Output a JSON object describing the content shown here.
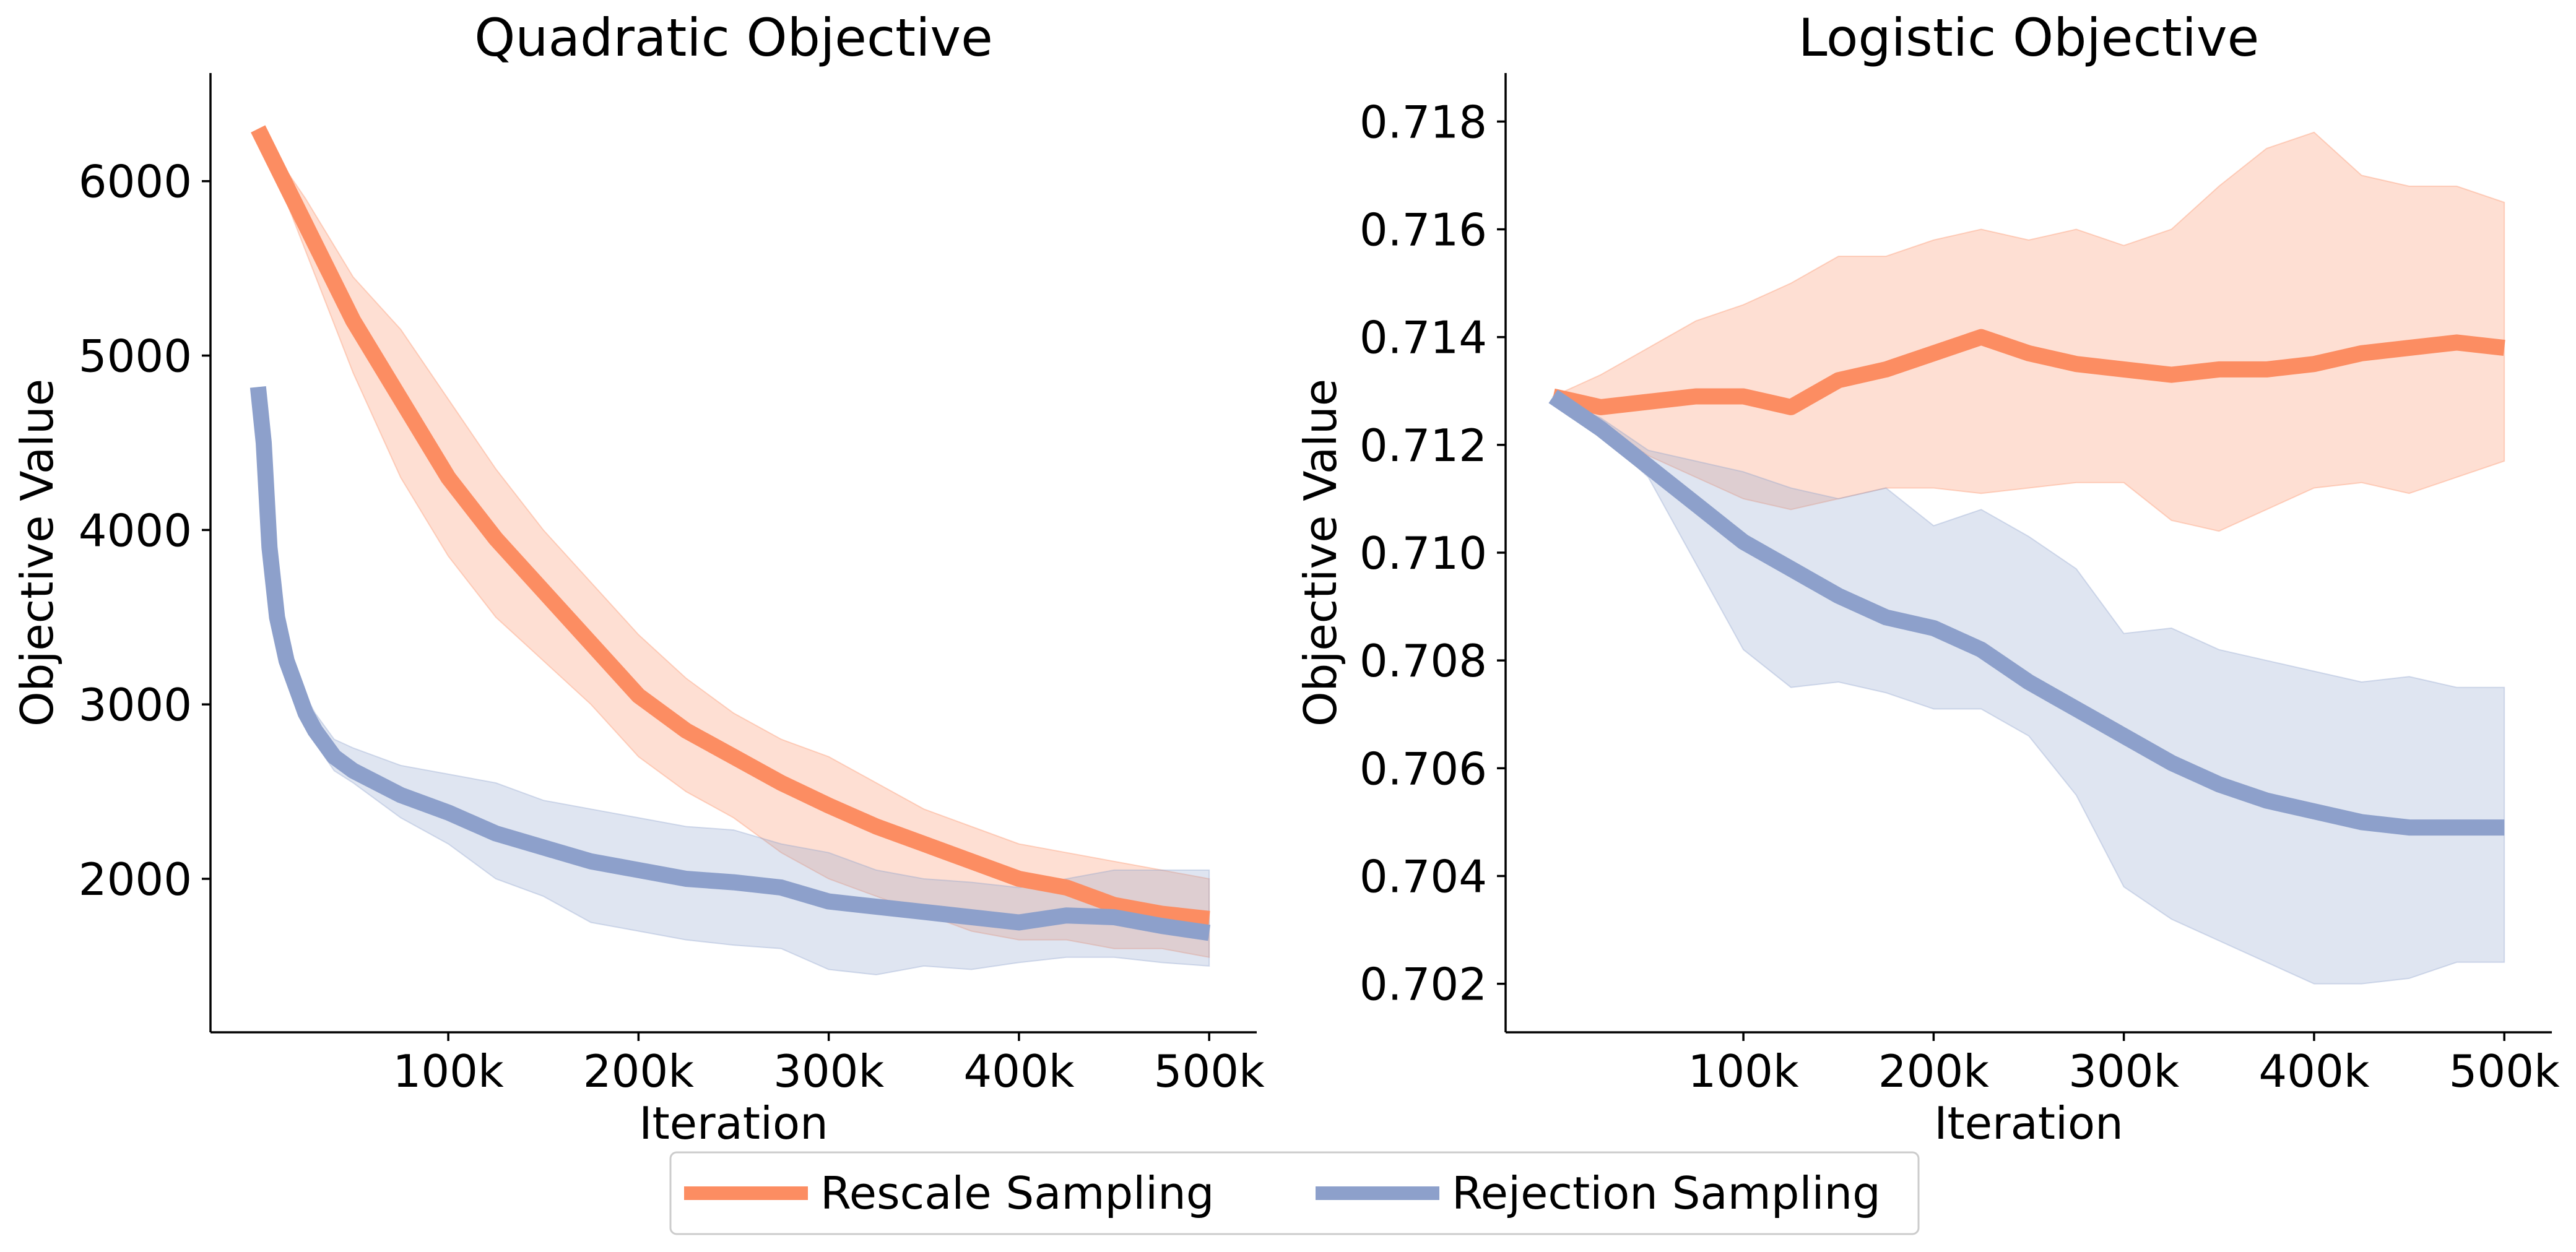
{
  "colors": {
    "rescale": "#fc8d62",
    "rejection": "#8da0cb"
  },
  "legend": {
    "items": [
      {
        "label": "Rescale Sampling",
        "color": "#fc8d62"
      },
      {
        "label": "Rejection Sampling",
        "color": "#8da0cb"
      }
    ]
  },
  "chart_data": [
    {
      "type": "line",
      "title": "Quadratic Objective",
      "xlabel": "Iteration",
      "ylabel": "Objective Value",
      "xlim": [
        -25000,
        525000
      ],
      "ylim": [
        1120,
        6620
      ],
      "xticks": [
        100000,
        200000,
        300000,
        400000,
        500000
      ],
      "xtick_labels": [
        "100k",
        "200k",
        "300k",
        "400k",
        "500k"
      ],
      "yticks": [
        2000,
        3000,
        4000,
        5000,
        6000
      ],
      "ytick_labels": [
        "2000",
        "3000",
        "4000",
        "5000",
        "6000"
      ],
      "grid": false,
      "x": [
        0,
        25000,
        50000,
        75000,
        100000,
        125000,
        150000,
        175000,
        200000,
        225000,
        250000,
        275000,
        300000,
        325000,
        350000,
        375000,
        400000,
        425000,
        450000,
        475000,
        500000
      ],
      "series": [
        {
          "name": "Rescale Sampling",
          "values": [
            6300,
            5750,
            5200,
            4750,
            4300,
            3950,
            3650,
            3350,
            3050,
            2850,
            2700,
            2550,
            2420,
            2300,
            2200,
            2100,
            2000,
            1950,
            1850,
            1800,
            1770
          ],
          "lower": [
            6300,
            5600,
            4900,
            4300,
            3850,
            3500,
            3250,
            3000,
            2700,
            2500,
            2350,
            2150,
            2000,
            1900,
            1800,
            1700,
            1650,
            1650,
            1600,
            1600,
            1550
          ],
          "upper": [
            6300,
            5900,
            5450,
            5150,
            4750,
            4350,
            4000,
            3700,
            3400,
            3150,
            2950,
            2800,
            2700,
            2550,
            2400,
            2300,
            2200,
            2150,
            2100,
            2050,
            2000
          ]
        },
        {
          "name": "Rejection Sampling",
          "x": [
            0,
            3000,
            6000,
            10000,
            15000,
            20000,
            25000,
            30000,
            40000,
            50000,
            75000,
            100000,
            125000,
            150000,
            175000,
            200000,
            225000,
            250000,
            275000,
            300000,
            325000,
            350000,
            375000,
            400000,
            425000,
            450000,
            475000,
            500000
          ],
          "values": [
            4820,
            4500,
            3900,
            3500,
            3250,
            3100,
            2950,
            2850,
            2700,
            2620,
            2480,
            2380,
            2260,
            2180,
            2100,
            2050,
            2000,
            1980,
            1950,
            1870,
            1840,
            1810,
            1780,
            1750,
            1790,
            1780,
            1730,
            1690
          ],
          "lower": [
            4820,
            4400,
            3800,
            3400,
            3150,
            3000,
            2870,
            2780,
            2620,
            2550,
            2350,
            2200,
            2000,
            1900,
            1750,
            1700,
            1650,
            1620,
            1600,
            1480,
            1450,
            1500,
            1480,
            1520,
            1550,
            1550,
            1520,
            1500
          ],
          "upper": [
            4820,
            4600,
            4000,
            3600,
            3350,
            3200,
            3050,
            2950,
            2800,
            2750,
            2650,
            2600,
            2550,
            2450,
            2400,
            2350,
            2300,
            2280,
            2200,
            2150,
            2050,
            2000,
            1980,
            1950,
            2000,
            2050,
            2050,
            2050
          ]
        }
      ]
    },
    {
      "type": "line",
      "title": "Logistic Objective",
      "xlabel": "Iteration",
      "ylabel": "Objective Value",
      "xlim": [
        -25000,
        525000
      ],
      "ylim": [
        0.7011,
        0.7189
      ],
      "xticks": [
        100000,
        200000,
        300000,
        400000,
        500000
      ],
      "xtick_labels": [
        "100k",
        "200k",
        "300k",
        "400k",
        "500k"
      ],
      "yticks": [
        0.702,
        0.704,
        0.706,
        0.708,
        0.71,
        0.712,
        0.714,
        0.716,
        0.718
      ],
      "ytick_labels": [
        "0.702",
        "0.704",
        "0.706",
        "0.708",
        "0.710",
        "0.712",
        "0.714",
        "0.716",
        "0.718"
      ],
      "grid": false,
      "x": [
        0,
        25000,
        50000,
        75000,
        100000,
        125000,
        150000,
        175000,
        200000,
        225000,
        250000,
        275000,
        300000,
        325000,
        350000,
        375000,
        400000,
        425000,
        450000,
        475000,
        500000
      ],
      "series": [
        {
          "name": "Rescale Sampling",
          "values": [
            0.7129,
            0.7127,
            0.7128,
            0.7129,
            0.7129,
            0.7127,
            0.7132,
            0.7134,
            0.7137,
            0.714,
            0.7137,
            0.7135,
            0.7134,
            0.7133,
            0.7134,
            0.7134,
            0.7135,
            0.7137,
            0.7138,
            0.7139,
            0.7138
          ],
          "lower": [
            0.7129,
            0.7124,
            0.7118,
            0.7114,
            0.711,
            0.7108,
            0.711,
            0.7112,
            0.7112,
            0.7111,
            0.7112,
            0.7113,
            0.7113,
            0.7106,
            0.7104,
            0.7108,
            0.7112,
            0.7113,
            0.7111,
            0.7114,
            0.7117
          ],
          "upper": [
            0.7129,
            0.7133,
            0.7138,
            0.7143,
            0.7146,
            0.715,
            0.7155,
            0.7155,
            0.7158,
            0.716,
            0.7158,
            0.716,
            0.7157,
            0.716,
            0.7168,
            0.7175,
            0.7178,
            0.717,
            0.7168,
            0.7168,
            0.7165
          ]
        },
        {
          "name": "Rejection Sampling",
          "values": [
            0.7129,
            0.7123,
            0.7116,
            0.7109,
            0.7102,
            0.7097,
            0.7092,
            0.7088,
            0.7086,
            0.7082,
            0.7076,
            0.7071,
            0.7066,
            0.7061,
            0.7057,
            0.7054,
            0.7052,
            0.705,
            0.7049,
            0.7049,
            0.7049
          ],
          "lower": [
            0.7129,
            0.7122,
            0.7114,
            0.7098,
            0.7082,
            0.7075,
            0.7076,
            0.7074,
            0.7071,
            0.7071,
            0.7066,
            0.7055,
            0.7038,
            0.7032,
            0.7028,
            0.7024,
            0.702,
            0.702,
            0.7021,
            0.7024,
            0.7024
          ],
          "upper": [
            0.7129,
            0.7125,
            0.7119,
            0.7117,
            0.7115,
            0.7112,
            0.711,
            0.7112,
            0.7105,
            0.7108,
            0.7103,
            0.7097,
            0.7085,
            0.7086,
            0.7082,
            0.708,
            0.7078,
            0.7076,
            0.7077,
            0.7075,
            0.7075
          ]
        }
      ]
    }
  ]
}
